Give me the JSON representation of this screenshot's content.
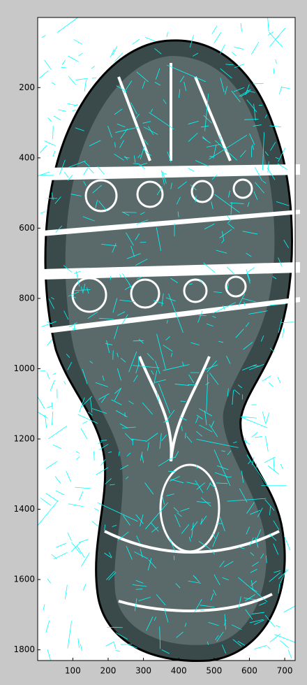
{
  "chart_data": {
    "type": "image",
    "xlim": [
      0.5,
      729.5
    ],
    "ylim": [
      0.5,
      1830.5
    ],
    "y_reversed": true,
    "xticks": [
      100,
      200,
      300,
      400,
      500,
      600,
      700
    ],
    "yticks": [
      200,
      400,
      600,
      800,
      1000,
      1200,
      1400,
      1600,
      1800
    ],
    "color": "#00ffff"
  }
}
